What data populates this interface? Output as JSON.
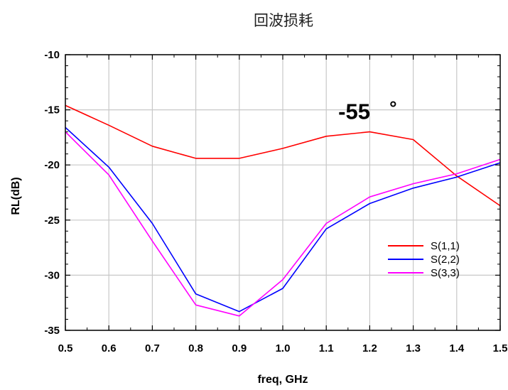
{
  "chart_data": {
    "type": "line",
    "title": "回波损耗",
    "xlabel": "freq, GHz",
    "ylabel": "RL(dB)",
    "xlim": [
      0.5,
      1.5
    ],
    "ylim": [
      -35,
      -10
    ],
    "x_ticks": [
      "0.5",
      "0.6",
      "0.7",
      "0.8",
      "0.9",
      "1.0",
      "1.1",
      "1.2",
      "1.3",
      "1.4",
      "1.5"
    ],
    "y_ticks": [
      "-10",
      "-15",
      "-20",
      "-25",
      "-30",
      "-35"
    ],
    "grid": true,
    "legend_position": "right",
    "annotation": {
      "text": "-55",
      "degree": "°",
      "x": 1.18,
      "y": -15.5
    },
    "series": [
      {
        "name": "S(1,1)",
        "color": "#ff0000",
        "x": [
          0.5,
          0.6,
          0.7,
          0.8,
          0.9,
          1.0,
          1.1,
          1.2,
          1.3,
          1.4,
          1.5
        ],
        "values": [
          -14.6,
          -16.4,
          -18.3,
          -19.4,
          -19.4,
          -18.5,
          -17.4,
          -17.0,
          -17.7,
          -21.0,
          -23.7
        ]
      },
      {
        "name": "S(2,2)",
        "color": "#0000ff",
        "x": [
          0.5,
          0.6,
          0.7,
          0.8,
          0.9,
          1.0,
          1.1,
          1.2,
          1.3,
          1.4,
          1.5
        ],
        "values": [
          -16.6,
          -20.2,
          -25.3,
          -31.7,
          -33.3,
          -31.2,
          -25.8,
          -23.5,
          -22.1,
          -21.1,
          -19.8
        ]
      },
      {
        "name": "S(3,3)",
        "color": "#ff00ff",
        "x": [
          0.5,
          0.6,
          0.7,
          0.8,
          0.9,
          1.0,
          1.1,
          1.2,
          1.3,
          1.4,
          1.5
        ],
        "values": [
          -17.0,
          -20.9,
          -26.9,
          -32.7,
          -33.7,
          -30.4,
          -25.3,
          -22.9,
          -21.7,
          -20.8,
          -19.5
        ]
      }
    ]
  }
}
